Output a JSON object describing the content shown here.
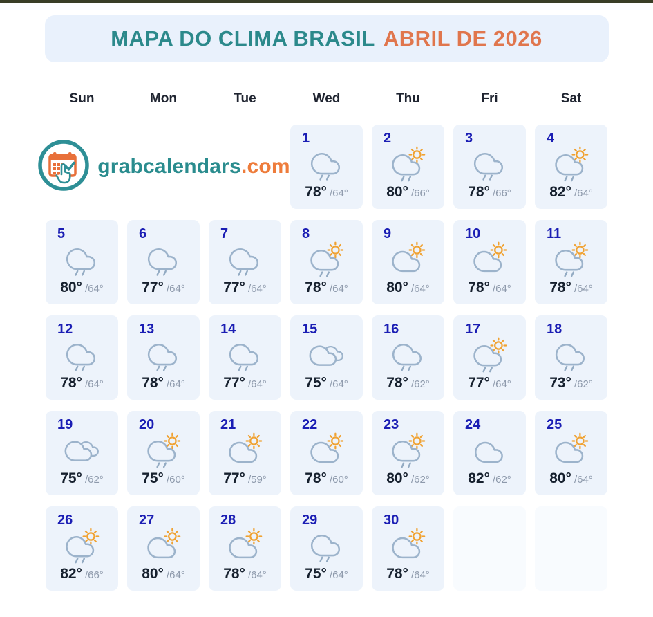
{
  "page": {
    "top_bar_color": "#3a3e26",
    "background_color": "#ffffff"
  },
  "header": {
    "title_part1": "MAPA DO CLIMA BRASIL",
    "title_part2": "ABRIL DE 2026",
    "title_part1_color": "#2b898b",
    "title_part2_color": "#e0764d",
    "banner_background": "#e9f1fc"
  },
  "weekdays": [
    "Sun",
    "Mon",
    "Tue",
    "Wed",
    "Thu",
    "Fri",
    "Sat"
  ],
  "logo": {
    "name": "grabcalendars",
    "tld": ".com",
    "name_color": "#2a8c8e",
    "tld_color": "#ee7c3b",
    "icon": "calendar-grab-logo-icon"
  },
  "calendar": {
    "month": "April",
    "year": "2026",
    "logo_spans_first_columns": 3,
    "trailing_empty_cells": 2,
    "day_number_color": "#1b1eb4",
    "cell_background": "#edf3fb",
    "empty_cell_background": "#f8fbfe",
    "days": [
      {
        "day": "1",
        "icon": "rain-cloud",
        "high": "78°",
        "low": "/64°"
      },
      {
        "day": "2",
        "icon": "sun-rain-cloud",
        "high": "80°",
        "low": "/66°"
      },
      {
        "day": "3",
        "icon": "rain-cloud",
        "high": "78°",
        "low": "/66°"
      },
      {
        "day": "4",
        "icon": "sun-rain-cloud",
        "high": "82°",
        "low": "/64°"
      },
      {
        "day": "5",
        "icon": "rain-cloud",
        "high": "80°",
        "low": "/64°"
      },
      {
        "day": "6",
        "icon": "rain-cloud",
        "high": "77°",
        "low": "/64°"
      },
      {
        "day": "7",
        "icon": "rain-cloud",
        "high": "77°",
        "low": "/64°"
      },
      {
        "day": "8",
        "icon": "sun-rain-cloud",
        "high": "78°",
        "low": "/64°"
      },
      {
        "day": "9",
        "icon": "sun-cloud",
        "high": "80°",
        "low": "/64°"
      },
      {
        "day": "10",
        "icon": "sun-cloud",
        "high": "78°",
        "low": "/64°"
      },
      {
        "day": "11",
        "icon": "sun-rain-cloud",
        "high": "78°",
        "low": "/64°"
      },
      {
        "day": "12",
        "icon": "rain-cloud",
        "high": "78°",
        "low": "/64°"
      },
      {
        "day": "13",
        "icon": "rain-cloud",
        "high": "78°",
        "low": "/64°"
      },
      {
        "day": "14",
        "icon": "rain-cloud",
        "high": "77°",
        "low": "/64°"
      },
      {
        "day": "15",
        "icon": "clouds",
        "high": "75°",
        "low": "/64°"
      },
      {
        "day": "16",
        "icon": "rain-cloud",
        "high": "78°",
        "low": "/62°"
      },
      {
        "day": "17",
        "icon": "sun-rain-cloud",
        "high": "77°",
        "low": "/64°"
      },
      {
        "day": "18",
        "icon": "rain-cloud",
        "high": "73°",
        "low": "/62°"
      },
      {
        "day": "19",
        "icon": "clouds",
        "high": "75°",
        "low": "/62°"
      },
      {
        "day": "20",
        "icon": "sun-rain-cloud",
        "high": "75°",
        "low": "/60°"
      },
      {
        "day": "21",
        "icon": "sun-cloud",
        "high": "77°",
        "low": "/59°"
      },
      {
        "day": "22",
        "icon": "sun-cloud",
        "high": "78°",
        "low": "/60°"
      },
      {
        "day": "23",
        "icon": "sun-rain-cloud",
        "high": "80°",
        "low": "/62°"
      },
      {
        "day": "24",
        "icon": "cloud",
        "high": "82°",
        "low": "/62°"
      },
      {
        "day": "25",
        "icon": "sun-cloud",
        "high": "80°",
        "low": "/64°"
      },
      {
        "day": "26",
        "icon": "sun-rain-cloud",
        "high": "82°",
        "low": "/66°"
      },
      {
        "day": "27",
        "icon": "sun-cloud",
        "high": "80°",
        "low": "/64°"
      },
      {
        "day": "28",
        "icon": "sun-cloud",
        "high": "78°",
        "low": "/64°"
      },
      {
        "day": "29",
        "icon": "rain-cloud",
        "high": "75°",
        "low": "/64°"
      },
      {
        "day": "30",
        "icon": "sun-cloud",
        "high": "78°",
        "low": "/64°"
      }
    ]
  },
  "icon_colors": {
    "cloud_stroke": "#9cb3cb",
    "rain_stroke": "#93abc3",
    "sun_stroke": "#f0a232",
    "logo_ring": "#2e8f96",
    "logo_calendar": "#e8703a"
  }
}
